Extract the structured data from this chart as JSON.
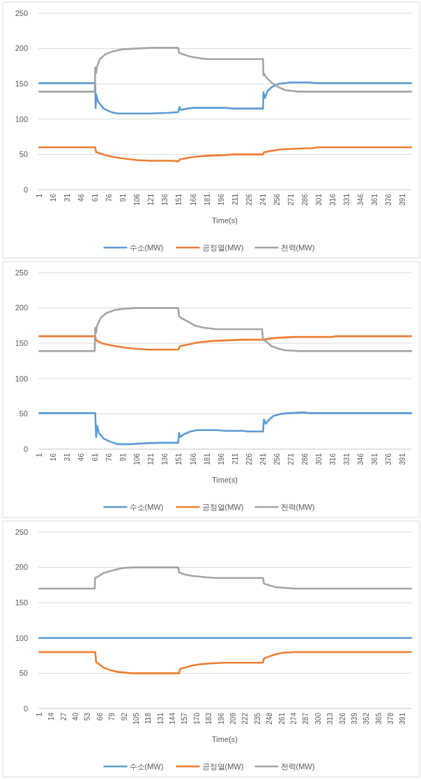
{
  "chart_data": [
    {
      "type": "line",
      "xlabel": "Time(s)",
      "xlim": [
        0,
        400
      ],
      "xticks": [
        1,
        16,
        31,
        46,
        61,
        76,
        91,
        106,
        121,
        136,
        151,
        166,
        181,
        196,
        211,
        226,
        241,
        256,
        271,
        286,
        301,
        316,
        331,
        346,
        361,
        376,
        391
      ],
      "ylim": [
        0,
        250
      ],
      "yticks": [
        0,
        50,
        100,
        150,
        200,
        250
      ],
      "grid": "y",
      "legend": "bottom",
      "series": [
        {
          "name": "수소(MW)",
          "color": "#5b9bd5",
          "x": [
            1,
            61,
            61.5,
            62,
            64,
            70,
            78,
            85,
            120,
            140,
            150,
            151.5,
            153,
            160,
            166,
            200,
            210,
            241,
            241.5,
            243,
            246,
            251,
            258,
            270,
            290,
            300,
            400
          ],
          "values": [
            151,
            151,
            116,
            135,
            125,
            115,
            110,
            108,
            108,
            109,
            110,
            117,
            113,
            115,
            116,
            116,
            115,
            115,
            138,
            130,
            140,
            146,
            150,
            152,
            152,
            151,
            151
          ]
        },
        {
          "name": "공정열(MW)",
          "color": "#ed7d31",
          "x": [
            1,
            61,
            62,
            65,
            72,
            82,
            93,
            105,
            120,
            145,
            150,
            152,
            160,
            170,
            180,
            200,
            210,
            241,
            242,
            250,
            260,
            275,
            295,
            300,
            400
          ],
          "values": [
            60,
            60,
            53,
            52,
            49,
            46,
            44,
            42,
            41,
            41,
            40,
            43,
            45,
            47,
            48,
            49,
            50,
            50,
            53,
            55,
            57,
            58,
            59,
            60,
            60
          ]
        },
        {
          "name": "전력(MW)",
          "color": "#a5a5a5",
          "x": [
            1,
            60.5,
            61,
            62,
            63,
            66,
            72,
            80,
            90,
            105,
            120,
            150,
            151,
            155,
            162,
            170,
            180,
            241,
            241.5,
            242,
            244,
            250,
            258,
            265,
            272,
            278,
            400
          ],
          "values": [
            139,
            139,
            173,
            165,
            175,
            185,
            192,
            196,
            199,
            200,
            201,
            201,
            194,
            192,
            189,
            187,
            185,
            185,
            162,
            165,
            160,
            152,
            145,
            141,
            140,
            139,
            139
          ]
        }
      ]
    },
    {
      "type": "line",
      "xlabel": "Time(s)",
      "xlim": [
        0,
        400
      ],
      "xticks": [
        1,
        16,
        31,
        46,
        61,
        76,
        91,
        106,
        121,
        136,
        151,
        166,
        181,
        196,
        211,
        226,
        241,
        256,
        271,
        286,
        301,
        316,
        331,
        346,
        361,
        376,
        391
      ],
      "ylim": [
        0,
        250
      ],
      "yticks": [
        0,
        50,
        100,
        150,
        200,
        250
      ],
      "grid": "y",
      "legend": "bottom",
      "series": [
        {
          "name": "수소(MW)",
          "color": "#5b9bd5",
          "x": [
            1,
            61,
            62,
            63,
            65,
            70,
            78,
            85,
            100,
            110,
            130,
            150,
            151,
            152,
            156,
            163,
            170,
            190,
            200,
            220,
            225,
            241,
            242,
            244,
            247,
            252,
            260,
            270,
            285,
            290,
            400
          ],
          "values": [
            51,
            51,
            17,
            33,
            23,
            15,
            10,
            7,
            7,
            8,
            9,
            9,
            23,
            17,
            21,
            25,
            27,
            27,
            26,
            26,
            25,
            25,
            42,
            36,
            41,
            47,
            50,
            51,
            52,
            51,
            51
          ]
        },
        {
          "name": "공정열(MW)",
          "color": "#ed7d31",
          "x": [
            1,
            61,
            62,
            68,
            78,
            92,
            105,
            120,
            150,
            152,
            160,
            170,
            185,
            200,
            220,
            241,
            250,
            260,
            275,
            315,
            320,
            400
          ],
          "values": [
            160,
            160,
            154,
            150,
            147,
            144,
            142,
            141,
            141,
            146,
            148,
            151,
            153,
            154,
            155,
            155,
            157,
            158,
            159,
            159,
            160,
            160
          ]
        },
        {
          "name": "전력(MW)",
          "color": "#a5a5a5",
          "x": [
            1,
            60.5,
            61,
            62,
            63,
            67,
            73,
            82,
            92,
            105,
            150,
            151,
            153,
            160,
            168,
            178,
            185,
            190,
            240,
            241,
            245,
            250,
            258,
            265,
            280,
            400
          ],
          "values": [
            139,
            139,
            172,
            165,
            175,
            186,
            193,
            197,
            199,
            200,
            200,
            188,
            186,
            181,
            175,
            172,
            171,
            170,
            170,
            155,
            152,
            146,
            142,
            140,
            139,
            139
          ]
        }
      ]
    },
    {
      "type": "line",
      "xlabel": "Time(s)",
      "xlim": [
        0,
        400
      ],
      "xticks": [
        1,
        14,
        27,
        40,
        53,
        66,
        79,
        92,
        105,
        118,
        131,
        144,
        157,
        170,
        183,
        196,
        209,
        222,
        235,
        248,
        261,
        274,
        287,
        300,
        313,
        326,
        339,
        352,
        365,
        378,
        391
      ],
      "ylim": [
        0,
        250
      ],
      "yticks": [
        0,
        50,
        100,
        150,
        200,
        250
      ],
      "grid": "y",
      "legend": "bottom",
      "series": [
        {
          "name": "수소(MW)",
          "color": "#5b9bd5",
          "x": [
            1,
            400
          ],
          "values": [
            100,
            100
          ]
        },
        {
          "name": "공정열(MW)",
          "color": "#ed7d31",
          "x": [
            1,
            61,
            62,
            65,
            70,
            78,
            85,
            92,
            100,
            151,
            152,
            157,
            165,
            175,
            185,
            200,
            241,
            242,
            248,
            255,
            262,
            275,
            400
          ],
          "values": [
            80,
            80,
            66,
            63,
            58,
            54,
            52,
            51,
            50,
            50,
            56,
            58,
            61,
            63,
            64,
            65,
            65,
            71,
            74,
            77,
            79,
            80,
            80
          ]
        },
        {
          "name": "전력(MW)",
          "color": "#a5a5a5",
          "x": [
            1,
            60.5,
            61,
            64,
            70,
            80,
            90,
            100,
            150,
            151,
            157,
            165,
            180,
            190,
            241,
            242,
            247,
            255,
            265,
            275,
            400
          ],
          "values": [
            170,
            170,
            185,
            187,
            192,
            196,
            199,
            200,
            200,
            193,
            190,
            188,
            186,
            185,
            185,
            177,
            175,
            172,
            171,
            170,
            170
          ]
        }
      ]
    }
  ]
}
